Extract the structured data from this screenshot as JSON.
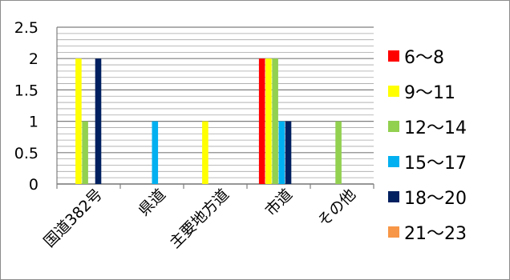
{
  "chart_data": {
    "type": "bar",
    "title": "",
    "xlabel": "",
    "ylabel": "",
    "ylim": [
      0,
      2.5
    ],
    "yticks": [
      "0",
      "0.5",
      "1",
      "1.5",
      "2",
      "2.5"
    ],
    "categories": [
      "国道382号",
      "県道",
      "主要地方道",
      "市道",
      "その他"
    ],
    "series": [
      {
        "name": "6〜8",
        "color": "#ff0000",
        "values": [
          0,
          0,
          0,
          2,
          0
        ]
      },
      {
        "name": "9〜11",
        "color": "#ffff00",
        "values": [
          2,
          0,
          1,
          2,
          0
        ]
      },
      {
        "name": "12〜14",
        "color": "#92d050",
        "values": [
          1,
          0,
          0,
          2,
          1
        ]
      },
      {
        "name": "15〜17",
        "color": "#00b0f0",
        "values": [
          0,
          1,
          0,
          1,
          0
        ]
      },
      {
        "name": "18〜20",
        "color": "#002060",
        "values": [
          2,
          0,
          0,
          1,
          0
        ]
      },
      {
        "name": "21〜23",
        "color": "#f79646",
        "values": [
          0,
          0,
          0,
          0,
          0
        ]
      }
    ],
    "grid": true,
    "legend_position": "right"
  }
}
